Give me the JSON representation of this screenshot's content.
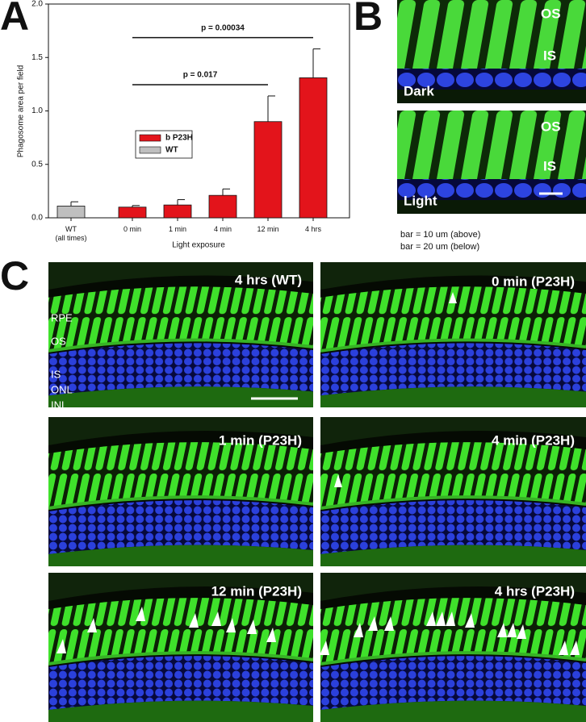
{
  "panel_labels": [
    "A",
    "B",
    "C"
  ],
  "chart_data": {
    "type": "bar",
    "ylabel": "Phagosome area per field",
    "xlabel": "Light exposure",
    "categories": [
      "WT\n(all times)",
      "0 min",
      "1 min",
      "4 min",
      "12 min",
      "4 hrs"
    ],
    "series": [
      {
        "name": "b P23H",
        "color": "#e3141b",
        "values": [
          null,
          0.1,
          0.12,
          0.21,
          0.9,
          1.31
        ],
        "errors": [
          null,
          0.015,
          0.05,
          0.06,
          0.24,
          0.27
        ]
      },
      {
        "name": "WT",
        "color": "#bfbfbf",
        "values": [
          0.11,
          null,
          null,
          null,
          null,
          null
        ],
        "errors": [
          0.04,
          null,
          null,
          null,
          null,
          null
        ]
      }
    ],
    "ylim": [
      0,
      2
    ],
    "yticks": [
      {
        "value": 0,
        "label": "0.0"
      },
      {
        "value": 0.5,
        "label": "0.5"
      },
      {
        "value": 1,
        "label": "1.0"
      },
      {
        "value": 1.5,
        "label": "1.5"
      },
      {
        "value": 2,
        "label": "2.0"
      }
    ],
    "annotations": [
      {
        "text": "p = 0.017",
        "from": "0 min",
        "to": "12 min"
      },
      {
        "text": "p = 0.00034",
        "from": "0 min",
        "to": "4 hrs"
      }
    ]
  },
  "panel_b": {
    "images": [
      {
        "labels": [
          "OS",
          "IS",
          "Dark"
        ]
      },
      {
        "labels": [
          "OS",
          "IS",
          "Light"
        ]
      }
    ],
    "caption": [
      "bar = 10 um (above)",
      "bar = 20 um (below)"
    ]
  },
  "panel_c": {
    "images": [
      {
        "title": "4 hrs (WT)",
        "layers": [
          "RPE",
          "OS",
          "IS",
          "ONL",
          "INL"
        ]
      },
      {
        "title": "0 min (P23H)"
      },
      {
        "title": "1 min (P23H)"
      },
      {
        "title": "4 min (P23H)"
      },
      {
        "title": "12 min (P23H)"
      },
      {
        "title": "4 hrs (P23H)"
      }
    ]
  }
}
